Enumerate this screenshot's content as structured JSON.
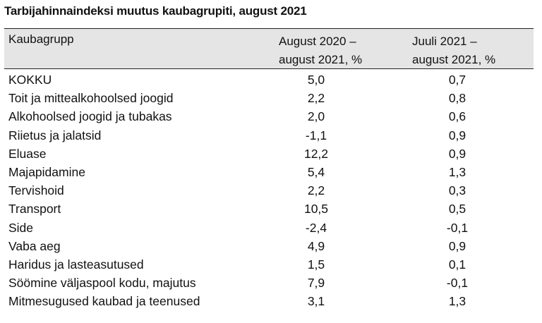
{
  "title": "Tarbijahinnaindeksi muutus kaubagrupiti, august 2021",
  "table": {
    "headers": {
      "group": "Kaubagrupp",
      "col1_line1": "August 2020 –",
      "col1_line2": "august 2021, %",
      "col2_line1": "Juuli 2021 –",
      "col2_line2": "august 2021, %"
    },
    "rows": [
      {
        "name": "KOKKU",
        "v1": "5,0",
        "v2": "0,7"
      },
      {
        "name": "Toit ja mittealkohoolsed joogid",
        "v1": "2,2",
        "v2": "0,8"
      },
      {
        "name": "Alkohoolsed joogid ja tubakas",
        "v1": "2,0",
        "v2": "0,6"
      },
      {
        "name": "Riietus ja jalatsid",
        "v1": "-1,1",
        "v2": "0,9"
      },
      {
        "name": "Eluase",
        "v1": "12,2",
        "v2": "0,9"
      },
      {
        "name": "Majapidamine",
        "v1": "5,4",
        "v2": "1,3"
      },
      {
        "name": "Tervishoid",
        "v1": "2,2",
        "v2": "0,3"
      },
      {
        "name": "Transport",
        "v1": "10,5",
        "v2": "0,5"
      },
      {
        "name": "Side",
        "v1": "-2,4",
        "v2": "-0,1"
      },
      {
        "name": "Vaba aeg",
        "v1": "4,9",
        "v2": "0,9"
      },
      {
        "name": "Haridus ja lasteasutused",
        "v1": "1,5",
        "v2": "0,1"
      },
      {
        "name": "Söömine väljaspool kodu, majutus",
        "v1": "7,9",
        "v2": "-0,1"
      },
      {
        "name": "Mitmesugused kaubad ja teenused",
        "v1": "3,1",
        "v2": "1,3"
      }
    ]
  }
}
